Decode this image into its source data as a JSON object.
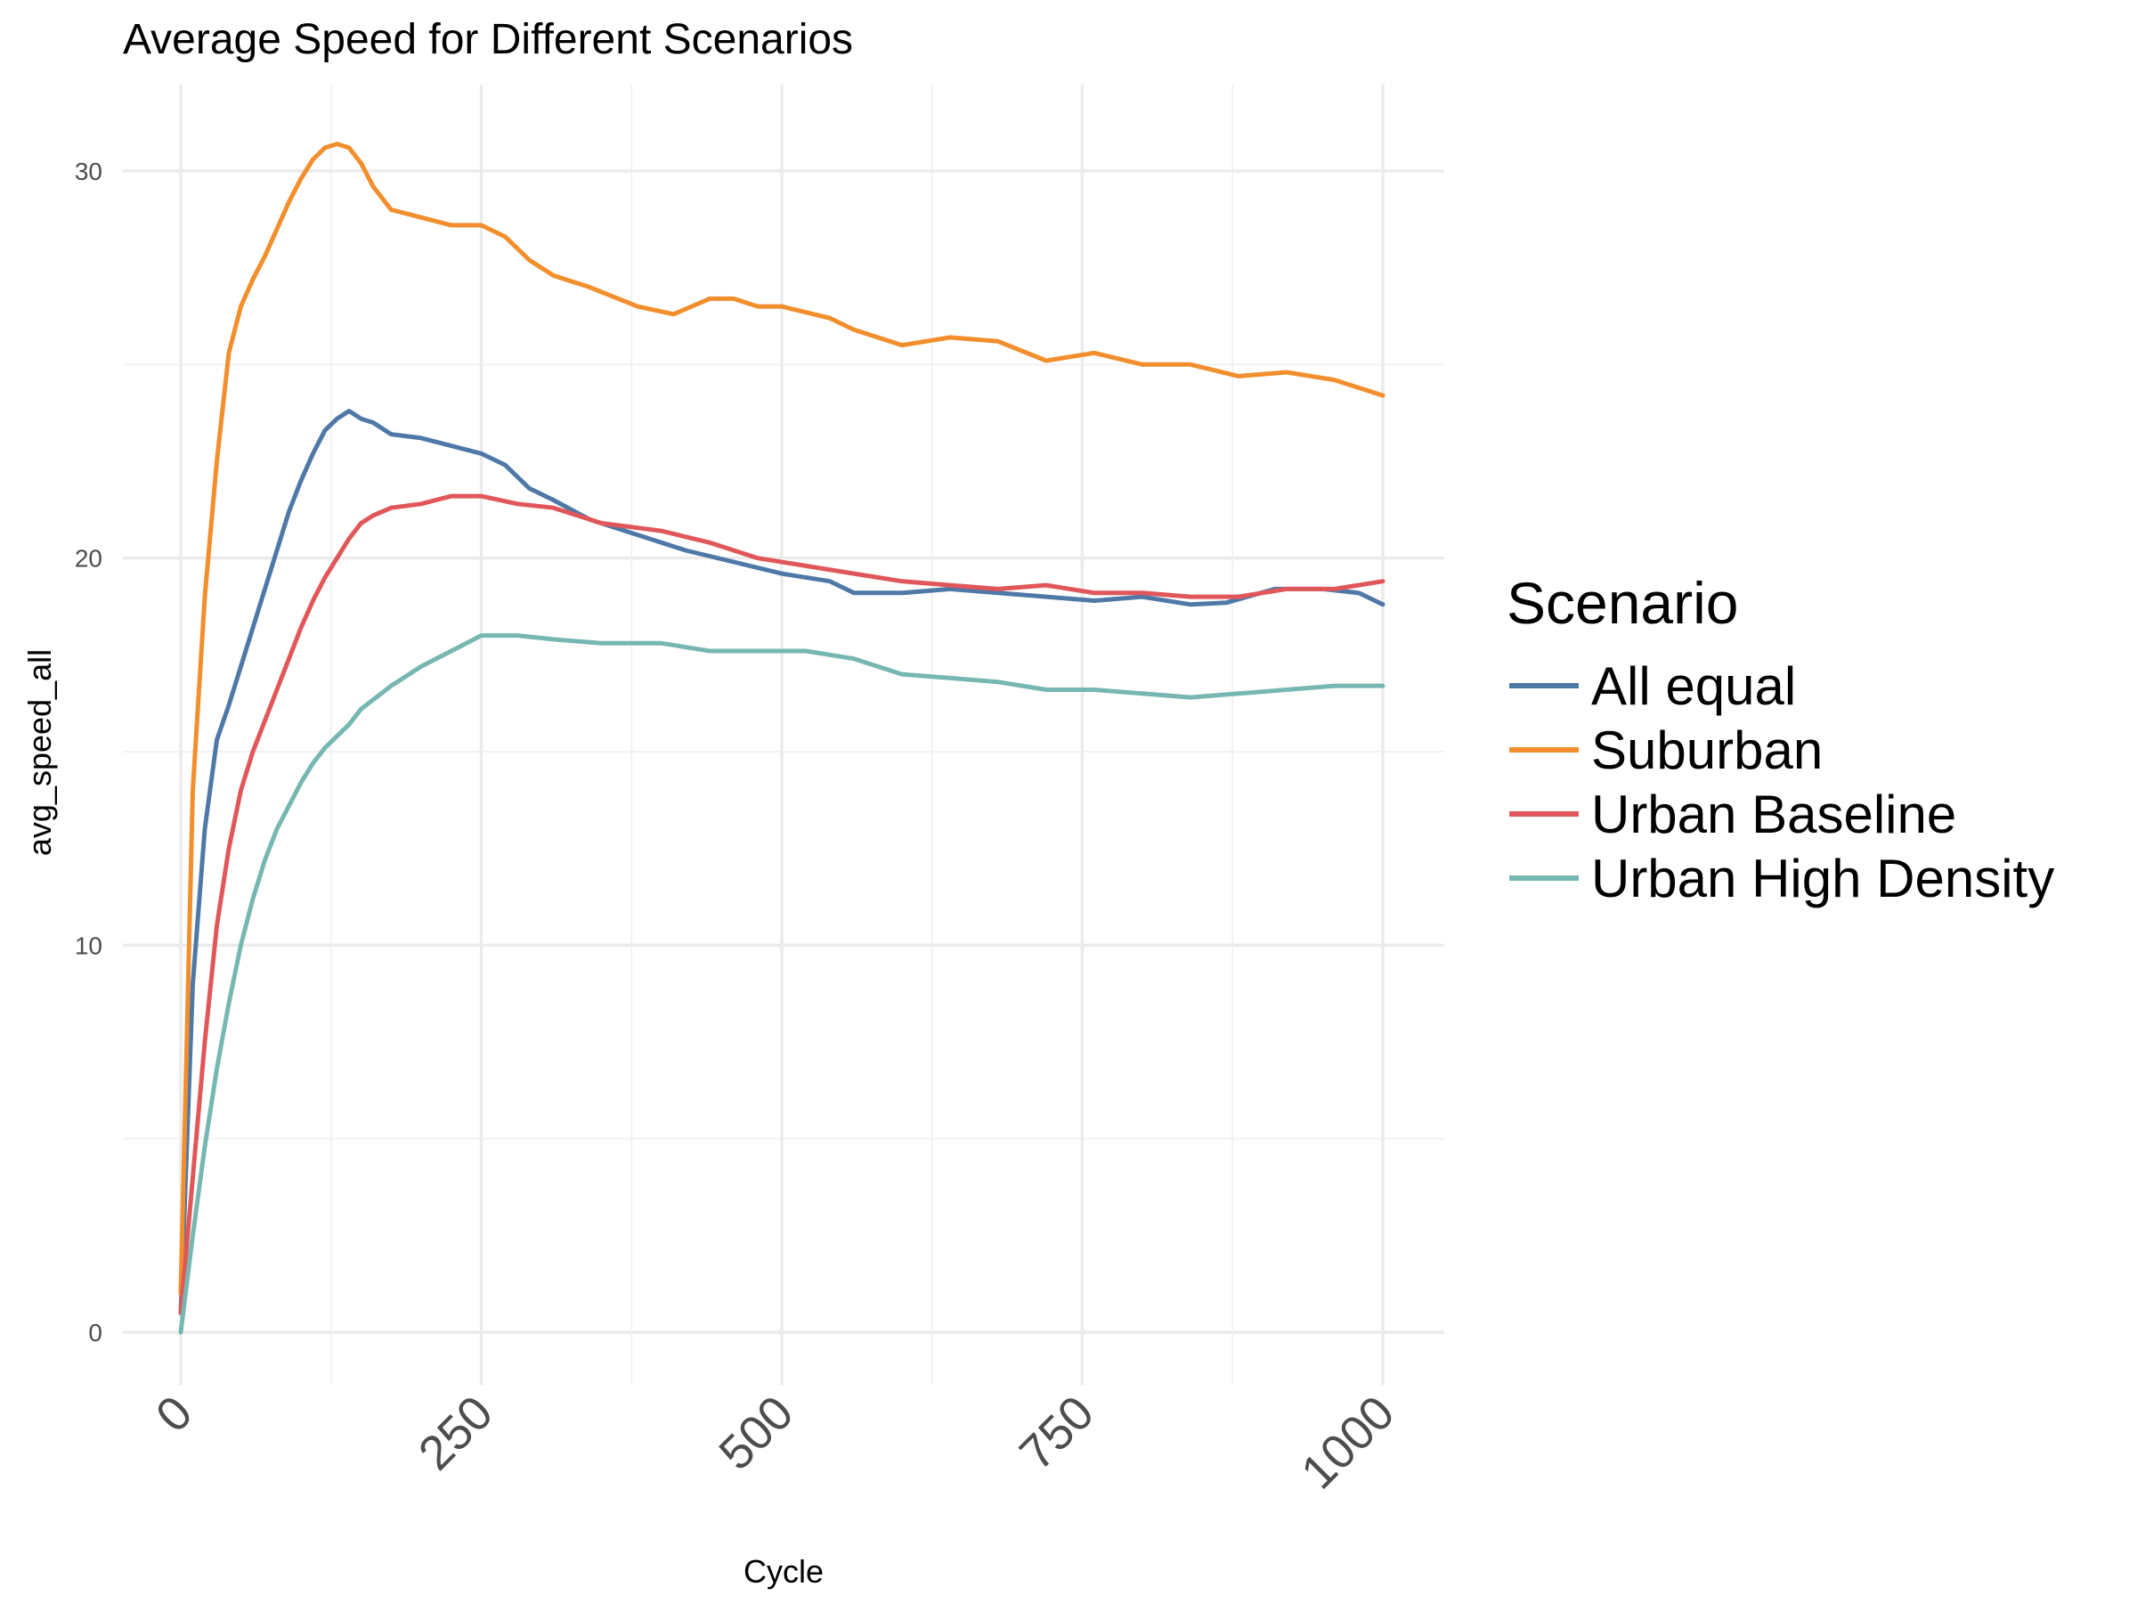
{
  "chart_data": {
    "type": "line",
    "title": "Average Speed for Different Scenarios",
    "xlabel": "Cycle",
    "ylabel": "avg_speed_all",
    "xlim": [
      0,
      1000
    ],
    "ylim": [
      0,
      30
    ],
    "x_ticks": [
      0,
      250,
      500,
      750,
      1000
    ],
    "y_ticks": [
      0,
      10,
      20,
      30
    ],
    "grid": true,
    "legend": {
      "title": "Scenario",
      "position": "right"
    },
    "series": [
      {
        "name": "All equal",
        "color": "#4e79a7",
        "points": [
          [
            0,
            0.5
          ],
          [
            10,
            9
          ],
          [
            20,
            13
          ],
          [
            30,
            15.3
          ],
          [
            40,
            16.2
          ],
          [
            50,
            17.2
          ],
          [
            60,
            18.2
          ],
          [
            70,
            19.2
          ],
          [
            80,
            20.2
          ],
          [
            90,
            21.2
          ],
          [
            100,
            22
          ],
          [
            110,
            22.7
          ],
          [
            120,
            23.3
          ],
          [
            130,
            23.6
          ],
          [
            140,
            23.8
          ],
          [
            150,
            23.6
          ],
          [
            160,
            23.5
          ],
          [
            175,
            23.2
          ],
          [
            200,
            23.1
          ],
          [
            225,
            22.9
          ],
          [
            250,
            22.7
          ],
          [
            270,
            22.4
          ],
          [
            290,
            21.8
          ],
          [
            310,
            21.5
          ],
          [
            340,
            21
          ],
          [
            380,
            20.6
          ],
          [
            420,
            20.2
          ],
          [
            460,
            19.9
          ],
          [
            500,
            19.6
          ],
          [
            540,
            19.4
          ],
          [
            560,
            19.1
          ],
          [
            600,
            19.1
          ],
          [
            640,
            19.2
          ],
          [
            680,
            19.1
          ],
          [
            720,
            19
          ],
          [
            760,
            18.9
          ],
          [
            800,
            19
          ],
          [
            840,
            18.8
          ],
          [
            870,
            18.85
          ],
          [
            910,
            19.2
          ],
          [
            950,
            19.2
          ],
          [
            980,
            19.1
          ],
          [
            1000,
            18.8
          ]
        ]
      },
      {
        "name": "Suburban",
        "color": "#f28e2b",
        "points": [
          [
            0,
            1
          ],
          [
            10,
            14
          ],
          [
            20,
            19
          ],
          [
            30,
            22.5
          ],
          [
            40,
            25.3
          ],
          [
            50,
            26.5
          ],
          [
            60,
            27.2
          ],
          [
            70,
            27.8
          ],
          [
            80,
            28.5
          ],
          [
            90,
            29.2
          ],
          [
            100,
            29.8
          ],
          [
            110,
            30.3
          ],
          [
            120,
            30.6
          ],
          [
            130,
            30.7
          ],
          [
            140,
            30.6
          ],
          [
            150,
            30.2
          ],
          [
            160,
            29.6
          ],
          [
            175,
            29
          ],
          [
            200,
            28.8
          ],
          [
            225,
            28.6
          ],
          [
            250,
            28.6
          ],
          [
            270,
            28.3
          ],
          [
            290,
            27.7
          ],
          [
            310,
            27.3
          ],
          [
            340,
            27
          ],
          [
            380,
            26.5
          ],
          [
            410,
            26.3
          ],
          [
            440,
            26.7
          ],
          [
            460,
            26.7
          ],
          [
            480,
            26.5
          ],
          [
            500,
            26.5
          ],
          [
            540,
            26.2
          ],
          [
            560,
            25.9
          ],
          [
            600,
            25.5
          ],
          [
            640,
            25.7
          ],
          [
            680,
            25.6
          ],
          [
            720,
            25.1
          ],
          [
            760,
            25.3
          ],
          [
            800,
            25
          ],
          [
            840,
            25
          ],
          [
            880,
            24.7
          ],
          [
            920,
            24.8
          ],
          [
            960,
            24.6
          ],
          [
            1000,
            24.2
          ]
        ]
      },
      {
        "name": "Urban Baseline",
        "color": "#e15759",
        "points": [
          [
            0,
            0.5
          ],
          [
            10,
            4
          ],
          [
            20,
            7.5
          ],
          [
            30,
            10.5
          ],
          [
            40,
            12.5
          ],
          [
            50,
            14
          ],
          [
            60,
            15
          ],
          [
            70,
            15.8
          ],
          [
            80,
            16.6
          ],
          [
            90,
            17.4
          ],
          [
            100,
            18.2
          ],
          [
            110,
            18.9
          ],
          [
            120,
            19.5
          ],
          [
            130,
            20
          ],
          [
            140,
            20.5
          ],
          [
            150,
            20.9
          ],
          [
            160,
            21.1
          ],
          [
            175,
            21.3
          ],
          [
            200,
            21.4
          ],
          [
            225,
            21.6
          ],
          [
            250,
            21.6
          ],
          [
            280,
            21.4
          ],
          [
            310,
            21.3
          ],
          [
            350,
            20.9
          ],
          [
            400,
            20.7
          ],
          [
            440,
            20.4
          ],
          [
            480,
            20
          ],
          [
            520,
            19.8
          ],
          [
            560,
            19.6
          ],
          [
            600,
            19.4
          ],
          [
            640,
            19.3
          ],
          [
            680,
            19.2
          ],
          [
            720,
            19.3
          ],
          [
            760,
            19.1
          ],
          [
            800,
            19.1
          ],
          [
            840,
            19
          ],
          [
            880,
            19
          ],
          [
            920,
            19.2
          ],
          [
            960,
            19.2
          ],
          [
            1000,
            19.4
          ]
        ]
      },
      {
        "name": "Urban High Density",
        "color": "#76b7b2",
        "points": [
          [
            0,
            0
          ],
          [
            10,
            2.5
          ],
          [
            20,
            4.8
          ],
          [
            30,
            6.8
          ],
          [
            40,
            8.5
          ],
          [
            50,
            10
          ],
          [
            60,
            11.2
          ],
          [
            70,
            12.2
          ],
          [
            80,
            13
          ],
          [
            90,
            13.6
          ],
          [
            100,
            14.2
          ],
          [
            110,
            14.7
          ],
          [
            120,
            15.1
          ],
          [
            130,
            15.4
          ],
          [
            140,
            15.7
          ],
          [
            150,
            16.1
          ],
          [
            175,
            16.7
          ],
          [
            200,
            17.2
          ],
          [
            225,
            17.6
          ],
          [
            250,
            18
          ],
          [
            280,
            18
          ],
          [
            310,
            17.9
          ],
          [
            350,
            17.8
          ],
          [
            400,
            17.8
          ],
          [
            440,
            17.6
          ],
          [
            480,
            17.6
          ],
          [
            520,
            17.6
          ],
          [
            560,
            17.4
          ],
          [
            600,
            17
          ],
          [
            640,
            16.9
          ],
          [
            680,
            16.8
          ],
          [
            720,
            16.6
          ],
          [
            760,
            16.6
          ],
          [
            800,
            16.5
          ],
          [
            840,
            16.4
          ],
          [
            880,
            16.5
          ],
          [
            920,
            16.6
          ],
          [
            960,
            16.7
          ],
          [
            1000,
            16.7
          ]
        ]
      }
    ]
  }
}
